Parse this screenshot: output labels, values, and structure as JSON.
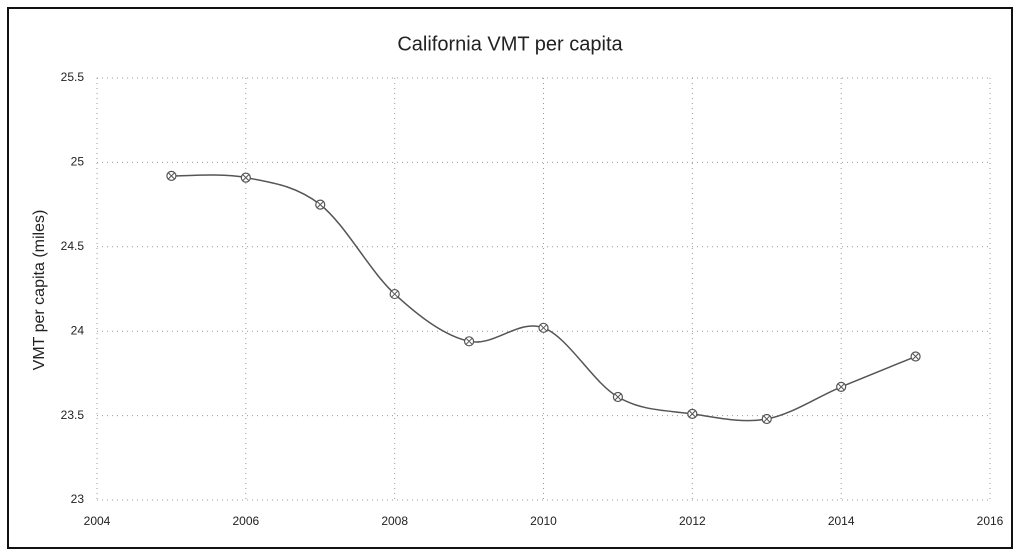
{
  "chart_data": {
    "type": "line",
    "title": "California VMT per capita",
    "y_label": "VMT per capita (miles)",
    "x": [
      2005,
      2006,
      2007,
      2008,
      2009,
      2010,
      2011,
      2012,
      2013,
      2014,
      2015
    ],
    "series": [
      {
        "name": "California",
        "color": "#555555",
        "values": [
          24.92,
          24.91,
          24.75,
          24.22,
          23.94,
          24.02,
          23.61,
          23.51,
          23.48,
          23.67,
          23.85
        ]
      }
    ],
    "xlim": [
      2004,
      2016
    ],
    "xticks": [
      2004,
      2006,
      2008,
      2010,
      2012,
      2014,
      2016
    ],
    "ylim": [
      23,
      25.5
    ],
    "yticks": [
      23,
      23.5,
      24,
      24.5,
      25,
      25.5
    ],
    "grid": true,
    "smooth": true
  }
}
